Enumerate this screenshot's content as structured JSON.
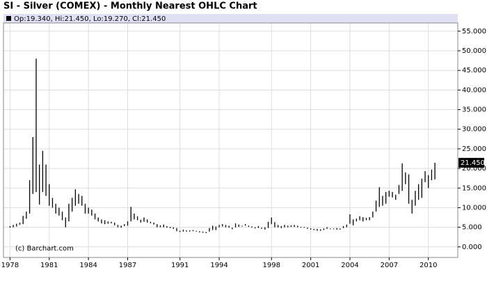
{
  "chart_data": {
    "type": "range",
    "title": "SI - Silver (COMEX) - Monthly Nearest OHLC Chart",
    "legend_text": "Op:19.340, Hi:21.450, Lo:19.270, Cl:21.450",
    "watermark": "(c) Barchart.com",
    "color": "#000000",
    "grid": true,
    "xlim": [
      1977.5,
      2012.25
    ],
    "xticks": [
      1978,
      1981,
      1984,
      1987,
      1991,
      1994,
      1998,
      2001,
      2004,
      2007,
      2010
    ],
    "ylim": [
      -2.7,
      57.1
    ],
    "yticks": [
      {
        "value": 0,
        "label": "0.000"
      },
      {
        "value": 5,
        "label": "5.000"
      },
      {
        "value": 10,
        "label": "10.000"
      },
      {
        "value": 15,
        "label": "15.000"
      },
      {
        "value": 20,
        "label": "20.000"
      },
      {
        "value": 25,
        "label": "25.000"
      },
      {
        "value": 30,
        "label": "30.000"
      },
      {
        "value": 35,
        "label": "35.000"
      },
      {
        "value": 40,
        "label": "40.000"
      },
      {
        "value": 45,
        "label": "45.000"
      },
      {
        "value": 50,
        "label": "50.000"
      },
      {
        "value": 55,
        "label": "55.000"
      }
    ],
    "last": {
      "value": 21.45,
      "label": "21.450"
    },
    "x": [
      1978,
      1978.25,
      1978.5,
      1978.75,
      1979,
      1979.25,
      1979.5,
      1979.75,
      1980,
      1980.25,
      1980.5,
      1980.75,
      1981,
      1981.25,
      1981.5,
      1981.75,
      1982,
      1982.25,
      1982.5,
      1982.75,
      1983,
      1983.25,
      1983.5,
      1983.75,
      1984,
      1984.25,
      1984.5,
      1984.75,
      1985,
      1985.25,
      1985.5,
      1985.75,
      1986,
      1986.25,
      1986.5,
      1986.75,
      1987,
      1987.25,
      1987.5,
      1987.75,
      1988,
      1988.25,
      1988.5,
      1988.75,
      1989,
      1989.25,
      1989.5,
      1989.75,
      1990,
      1990.25,
      1990.5,
      1990.75,
      1991,
      1991.25,
      1991.5,
      1991.75,
      1992,
      1992.25,
      1992.5,
      1992.75,
      1993,
      1993.25,
      1993.5,
      1993.75,
      1994,
      1994.25,
      1994.5,
      1994.75,
      1995,
      1995.25,
      1995.5,
      1995.75,
      1996,
      1996.25,
      1996.5,
      1996.75,
      1997,
      1997.25,
      1997.5,
      1997.75,
      1998,
      1998.25,
      1998.5,
      1998.75,
      1999,
      1999.25,
      1999.5,
      1999.75,
      2000,
      2000.25,
      2000.5,
      2000.75,
      2001,
      2001.25,
      2001.5,
      2001.75,
      2002,
      2002.25,
      2002.5,
      2002.75,
      2003,
      2003.25,
      2003.5,
      2003.75,
      2004,
      2004.25,
      2004.5,
      2004.75,
      2005,
      2005.25,
      2005.5,
      2005.75,
      2006,
      2006.25,
      2006.5,
      2006.75,
      2007,
      2007.25,
      2007.5,
      2007.75,
      2008,
      2008.25,
      2008.5,
      2008.75,
      2009,
      2009.25,
      2009.5,
      2009.75,
      2010,
      2010.25,
      2010.5
    ],
    "high": [
      5.3,
      5.6,
      5.9,
      6.2,
      7.9,
      9.0,
      17.0,
      28.0,
      48.0,
      21.0,
      24.5,
      21.0,
      16.0,
      12.5,
      11.0,
      10.0,
      9.0,
      7.5,
      11.0,
      12.5,
      14.7,
      13.5,
      13.0,
      11.0,
      10.0,
      9.5,
      8.5,
      7.5,
      7.0,
      6.8,
      6.5,
      6.4,
      6.2,
      5.6,
      5.4,
      5.8,
      6.5,
      10.2,
      8.5,
      7.8,
      6.9,
      7.5,
      7.0,
      6.4,
      6.2,
      5.8,
      5.5,
      5.7,
      5.3,
      5.1,
      5.0,
      4.8,
      4.1,
      4.4,
      4.2,
      4.2,
      4.3,
      4.1,
      4.0,
      3.9,
      3.8,
      4.8,
      5.4,
      5.2,
      5.6,
      5.8,
      5.6,
      5.4,
      4.9,
      6.0,
      5.7,
      5.4,
      5.8,
      5.4,
      5.2,
      5.0,
      5.3,
      4.9,
      5.0,
      6.4,
      7.5,
      6.3,
      5.6,
      5.3,
      5.6,
      5.4,
      5.5,
      5.6,
      5.4,
      5.1,
      5.1,
      4.9,
      4.7,
      4.6,
      4.6,
      4.5,
      4.7,
      5.0,
      4.7,
      4.7,
      4.8,
      4.7,
      5.3,
      5.7,
      8.3,
      7.0,
      7.2,
      7.8,
      7.6,
      7.4,
      7.6,
      9.0,
      11.8,
      15.2,
      13.0,
      14.0,
      14.3,
      14.0,
      13.3,
      15.8,
      21.3,
      19.0,
      18.5,
      12.0,
      14.3,
      16.0,
      17.4,
      19.3,
      18.3,
      19.7,
      21.45
    ],
    "low": [
      4.9,
      5.0,
      5.2,
      5.6,
      5.8,
      7.2,
      8.5,
      13.5,
      14.0,
      10.8,
      14.0,
      13.0,
      10.5,
      10.0,
      8.5,
      8.0,
      6.8,
      5.0,
      6.5,
      9.0,
      10.5,
      11.0,
      10.5,
      8.5,
      8.5,
      8.0,
      7.0,
      6.5,
      6.0,
      5.8,
      5.9,
      6.0,
      5.5,
      5.0,
      4.9,
      5.3,
      5.4,
      6.5,
      7.0,
      6.8,
      6.2,
      6.4,
      6.2,
      6.0,
      5.7,
      5.0,
      5.0,
      5.0,
      4.9,
      4.8,
      4.6,
      4.0,
      3.8,
      3.9,
      3.9,
      3.9,
      4.0,
      3.9,
      3.7,
      3.6,
      3.5,
      3.9,
      4.3,
      4.3,
      5.0,
      5.2,
      5.0,
      4.9,
      4.5,
      5.0,
      5.1,
      5.2,
      5.4,
      5.1,
      4.9,
      4.7,
      4.8,
      4.6,
      4.4,
      4.8,
      5.8,
      5.0,
      5.0,
      4.8,
      5.0,
      5.0,
      5.1,
      5.1,
      5.0,
      4.9,
      4.9,
      4.6,
      4.4,
      4.3,
      4.1,
      4.1,
      4.3,
      4.6,
      4.5,
      4.5,
      4.4,
      4.4,
      4.8,
      5.0,
      5.9,
      5.5,
      6.5,
      6.8,
      6.5,
      6.8,
      6.8,
      7.5,
      9.0,
      10.2,
      10.5,
      11.0,
      12.8,
      12.6,
      12.0,
      13.5,
      14.3,
      16.0,
      11.0,
      8.5,
      10.5,
      12.0,
      12.5,
      16.5,
      15.0,
      17.0,
      17.2
    ]
  }
}
